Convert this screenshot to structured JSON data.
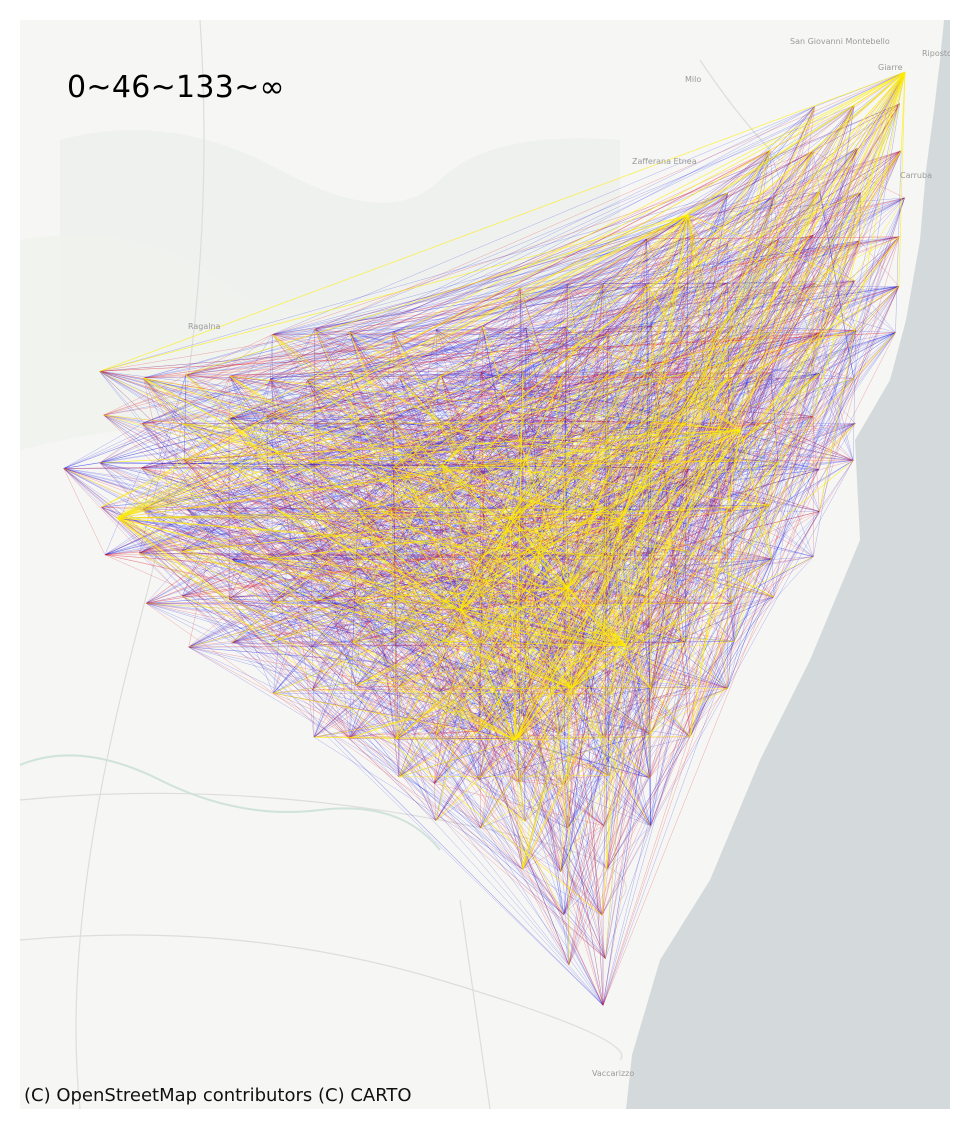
{
  "map": {
    "legend_title": "0~46~133~∞",
    "attribution": "(C) OpenStreetMap contributors (C) CARTO",
    "place_labels": [
      "San Giovanni Montebello",
      "Milo",
      "Giarre",
      "Riposto",
      "Zafferana Etnea",
      "Carruba",
      "Vaccarizzo",
      "Ragalna"
    ],
    "colors": {
      "land": "#f6f6f4",
      "sea": "#d4dadc",
      "low": "#0a14e6",
      "mid": "#e01828",
      "high": "#ffee00"
    }
  }
}
